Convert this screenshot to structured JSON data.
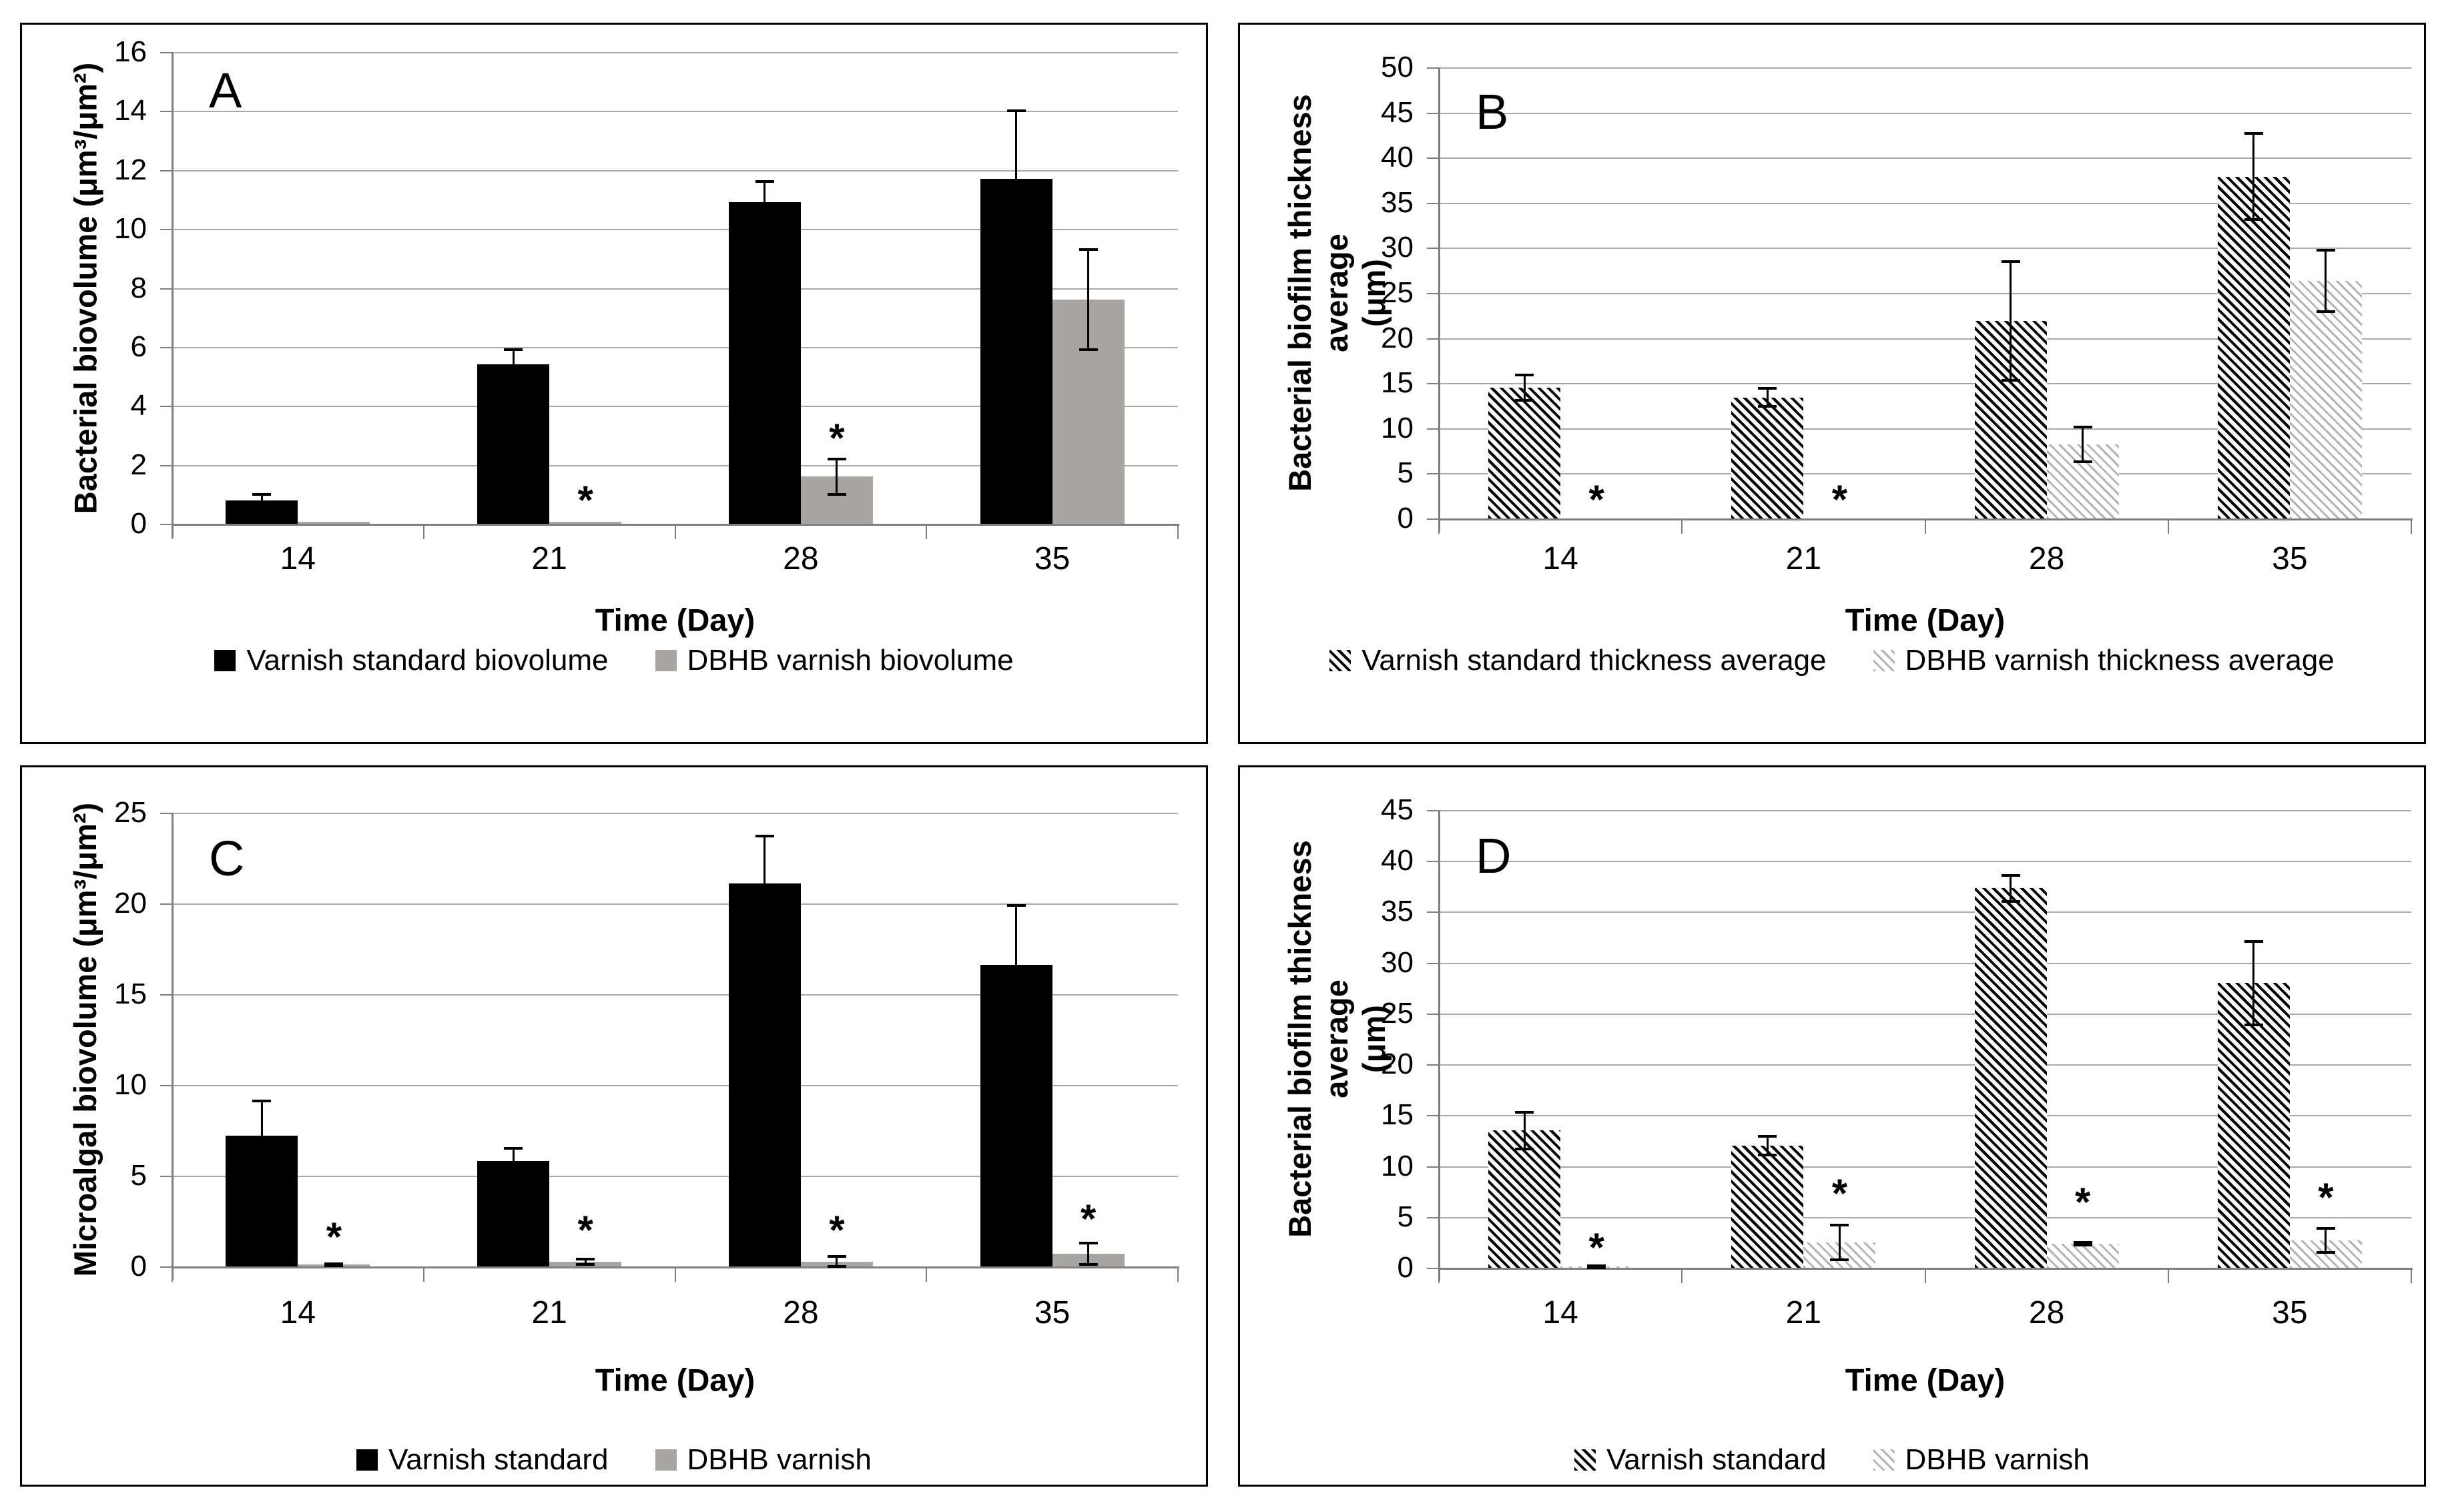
{
  "figure": {
    "background": "#ffffff",
    "symbols": {
      "significance": "*"
    },
    "colors": {
      "bar_black": "#000000",
      "bar_gray": "#a9a5a2",
      "gridline": "#a9a9a9",
      "axis": "#7f7f7f"
    }
  },
  "chart_data": [
    {
      "id": "A",
      "type": "bar",
      "title_letter": "A",
      "ylabel_lines": [
        "Bacterial biovolume (μm³/μm²)"
      ],
      "xlabel": "Time (Day)",
      "categories": [
        "14",
        "21",
        "28",
        "35"
      ],
      "ylim": [
        0,
        16
      ],
      "yticks": [
        0,
        2,
        4,
        6,
        8,
        10,
        12,
        14,
        16
      ],
      "grid": true,
      "legend_position": "bottom",
      "series": [
        {
          "name": "Varnish standard biovolume",
          "style": "solid-black",
          "values": [
            0.8,
            5.4,
            10.9,
            11.7
          ],
          "errors": [
            0.2,
            0.5,
            0.7,
            2.3
          ]
        },
        {
          "name": "DBHB varnish biovolume",
          "style": "solid-gray",
          "values": [
            0.07,
            0.07,
            1.6,
            7.6
          ],
          "errors": [
            0,
            0,
            0.6,
            1.7
          ]
        }
      ],
      "asterisks": [
        {
          "category": "21",
          "series": 1,
          "y": 0.8
        },
        {
          "category": "28",
          "series": 1,
          "y": 2.9
        }
      ]
    },
    {
      "id": "B",
      "type": "bar",
      "title_letter": "B",
      "ylabel_lines": [
        "Bacterial biofilm thickness average",
        "(μm)"
      ],
      "xlabel": "Time (Day)",
      "categories": [
        "14",
        "21",
        "28",
        "35"
      ],
      "ylim": [
        0,
        50
      ],
      "yticks": [
        0,
        5,
        10,
        15,
        20,
        25,
        30,
        35,
        40,
        45,
        50
      ],
      "grid": true,
      "legend_position": "bottom",
      "series": [
        {
          "name": "Varnish standard thickness average",
          "style": "hatch-dark",
          "values": [
            14.5,
            13.4,
            21.9,
            37.9
          ],
          "errors": [
            1.4,
            1.0,
            6.6,
            4.8
          ]
        },
        {
          "name": "DBHB varnish thickness average",
          "style": "hatch-light",
          "values": [
            0,
            0,
            8.2,
            26.3
          ],
          "errors": [
            0,
            0,
            1.9,
            3.4
          ]
        }
      ],
      "asterisks": [
        {
          "category": "14",
          "series": 1,
          "y": 2.1
        },
        {
          "category": "21",
          "series": 1,
          "y": 2.1
        }
      ]
    },
    {
      "id": "C",
      "type": "bar",
      "title_letter": "C",
      "ylabel_lines": [
        "Microalgal biovolume (μm³/μm²)"
      ],
      "xlabel": "Time (Day)",
      "categories": [
        "14",
        "21",
        "28",
        "35"
      ],
      "ylim": [
        0,
        25
      ],
      "yticks": [
        0,
        5,
        10,
        15,
        20,
        25
      ],
      "grid": true,
      "legend_position": "bottom",
      "series": [
        {
          "name": "Varnish standard",
          "style": "solid-black",
          "values": [
            7.2,
            5.8,
            21.1,
            16.6
          ],
          "errors": [
            1.9,
            0.7,
            2.6,
            3.3
          ]
        },
        {
          "name": "DBHB varnish",
          "style": "solid-gray",
          "values": [
            0.1,
            0.25,
            0.25,
            0.7
          ],
          "errors": [
            0.05,
            0.15,
            0.3,
            0.6
          ]
        }
      ],
      "asterisks": [
        {
          "category": "14",
          "series": 1,
          "y": 1.6
        },
        {
          "category": "21",
          "series": 1,
          "y": 2.0
        },
        {
          "category": "28",
          "series": 1,
          "y": 2.0
        },
        {
          "category": "35",
          "series": 1,
          "y": 2.6
        }
      ]
    },
    {
      "id": "D",
      "type": "bar",
      "title_letter": "D",
      "ylabel_lines": [
        "Bacterial biofilm thickness average",
        "(μm)"
      ],
      "xlabel": "Time (Day)",
      "categories": [
        "14",
        "21",
        "28",
        "35"
      ],
      "ylim": [
        0,
        45
      ],
      "yticks": [
        0,
        5,
        10,
        15,
        20,
        25,
        30,
        35,
        40,
        45
      ],
      "grid": true,
      "legend_position": "bottom",
      "series": [
        {
          "name": "Varnish standard",
          "style": "hatch-dark",
          "values": [
            13.5,
            12.0,
            37.3,
            28.0
          ],
          "errors": [
            1.8,
            0.9,
            1.3,
            4.1
          ]
        },
        {
          "name": "DBHB varnish",
          "style": "hatch-light",
          "values": [
            0.1,
            2.5,
            2.35,
            2.7
          ],
          "errors": [
            0.1,
            1.7,
            0.15,
            1.2
          ]
        }
      ],
      "asterisks": [
        {
          "category": "14",
          "series": 1,
          "y": 2.0
        },
        {
          "category": "21",
          "series": 1,
          "y": 7.3
        },
        {
          "category": "28",
          "series": 1,
          "y": 6.4
        },
        {
          "category": "35",
          "series": 1,
          "y": 6.9
        }
      ]
    }
  ]
}
